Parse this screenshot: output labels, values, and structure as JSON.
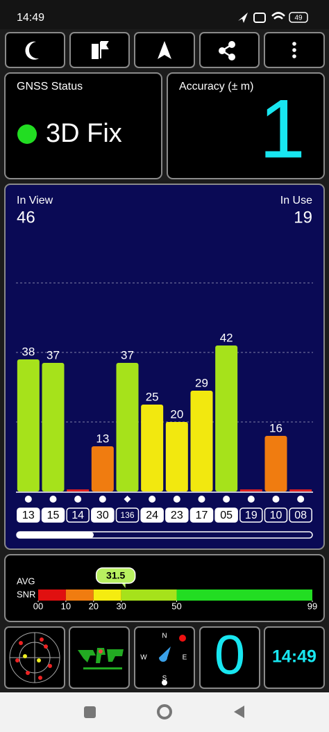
{
  "status_bar": {
    "time": "14:49",
    "battery": "49"
  },
  "gnss_status": {
    "title": "GNSS Status",
    "fix": "3D Fix"
  },
  "accuracy": {
    "title": "Accuracy (± m)",
    "value": 1
  },
  "satellites": {
    "in_view_label": "In View",
    "in_view": 46,
    "in_use_label": "In Use",
    "in_use": 19,
    "chart": {
      "type": "bar",
      "categories": [
        "13",
        "15",
        "14",
        "30",
        "136",
        "24",
        "23",
        "17",
        "05",
        "19",
        "10",
        "08"
      ],
      "values": [
        38,
        37,
        null,
        13,
        37,
        25,
        20,
        29,
        42,
        null,
        16,
        null
      ],
      "colors": [
        "#a6e21b",
        "#a6e21b",
        "#e02020",
        "#f07c10",
        "#a6e21b",
        "#f2e80f",
        "#f2e80f",
        "#f2e80f",
        "#a6e21b",
        "#e02020",
        "#f07c10",
        "#e02020"
      ],
      "used": [
        true,
        true,
        false,
        true,
        false,
        true,
        true,
        true,
        true,
        false,
        false,
        false
      ],
      "markers": [
        "circle",
        "circle",
        "circle",
        "circle",
        "diamond",
        "circle",
        "circle",
        "circle",
        "circle",
        "circle",
        "circle",
        "circle"
      ],
      "ylim": [
        0,
        62
      ],
      "yticks": [
        20,
        40,
        60
      ],
      "grid": true
    }
  },
  "avg_snr": {
    "labels": [
      "AVG",
      "SNR"
    ],
    "value": 31.5,
    "xlim": [
      0,
      99
    ],
    "xticks": [
      {
        "value": 0,
        "label": "00"
      },
      10,
      20,
      30,
      50,
      99
    ],
    "band_colors": [
      "#e01010",
      "#f07c10",
      "#f5ec10",
      "#a6e21b",
      "#22dd22"
    ]
  },
  "tiles": {
    "compass": [
      "N",
      "E",
      "S",
      "W"
    ],
    "count": 0,
    "clock": "14:49"
  }
}
